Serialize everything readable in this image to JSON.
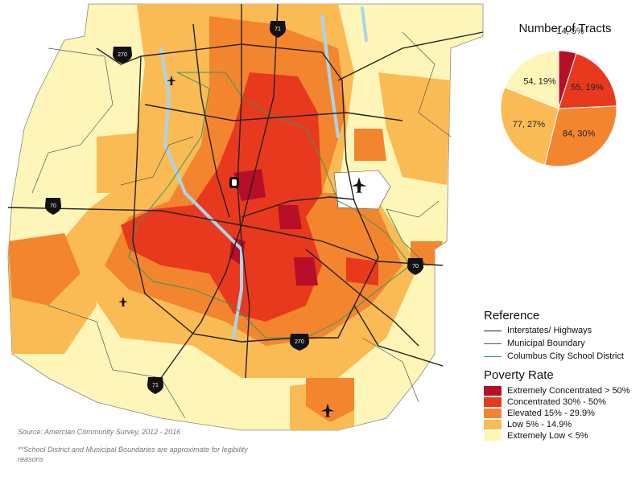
{
  "title": "Number of Tracts",
  "colors": {
    "extremely_concentrated": "#b70f27",
    "concentrated": "#e8391e",
    "elevated": "#f4852f",
    "low": "#fbbb54",
    "extremely_low": "#fef6b8",
    "school_district": "#2e9d57",
    "highway": "#222222",
    "municipal": "#555555",
    "water": "#a9d4ea"
  },
  "chart_data": {
    "type": "pie",
    "title": "Number of Tracts",
    "slices": [
      {
        "label": "14,  5%",
        "value": 14,
        "key": "extremely_concentrated"
      },
      {
        "label": "55,  19%",
        "value": 55,
        "key": "concentrated"
      },
      {
        "label": "84,  30%",
        "value": 84,
        "key": "elevated"
      },
      {
        "label": "77,  27%",
        "value": 77,
        "key": "low"
      },
      {
        "label": "54,  19%",
        "value": 54,
        "key": "extremely_low"
      }
    ]
  },
  "reference": {
    "title": "Reference",
    "items": [
      {
        "label": "Interstates/ Highways",
        "key": "highway"
      },
      {
        "label": "Municipal Boundary",
        "key": "municipal"
      },
      {
        "label": "Columbus City School District",
        "key": "school_district"
      }
    ]
  },
  "poverty": {
    "title": "Poverty Rate",
    "items": [
      {
        "label": "Extremely Concentrated > 50%",
        "key": "extremely_concentrated"
      },
      {
        "label": "Concentrated 30% - 50%",
        "key": "concentrated"
      },
      {
        "label": "Elevated 15% - 29.9%",
        "key": "elevated"
      },
      {
        "label": "Low 5% - 14.9%",
        "key": "low"
      },
      {
        "label": "Extremely Low < 5%",
        "key": "extremely_low"
      }
    ]
  },
  "shields": [
    {
      "number": "71",
      "icon": "interstate-shield-icon"
    },
    {
      "number": "270",
      "icon": "interstate-shield-icon"
    },
    {
      "number": "70",
      "icon": "interstate-shield-icon"
    },
    {
      "number": "70",
      "icon": "interstate-shield-icon"
    },
    {
      "number": "270",
      "icon": "interstate-shield-icon"
    },
    {
      "number": "71",
      "icon": "interstate-shield-icon"
    }
  ],
  "source": "Source:  Amercian Community Survey, 2012 - 2016",
  "note": "**School District and Municipal Boundaries are approximate for legibility reasons"
}
